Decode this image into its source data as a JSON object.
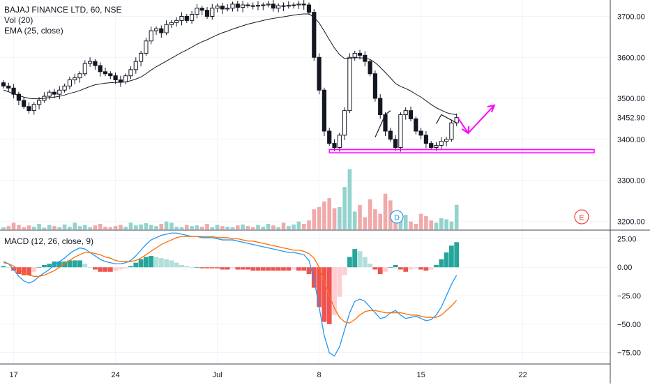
{
  "legend": {
    "symbol": "BAJAJ FINANCE LTD, 60, NSE",
    "volume": "Vol (20)",
    "ema": "EMA (25, close)",
    "macd": "MACD (12, 26, close, 9)"
  },
  "colors": {
    "up": "#26a69a",
    "down": "#ef5350",
    "candle": "#131722",
    "ema": "#131722",
    "drawing": "#ff00ff",
    "macd_line": "#2196f3",
    "signal_line": "#ff6d00",
    "hist_up_strong": "#26a69a",
    "hist_up_weak": "#b2dfdb",
    "hist_down_strong": "#ef5350",
    "hist_down_weak": "#ffcdd2",
    "grid": "#f0f3fa",
    "axis_text": "#131722",
    "last_price_bg": "#ffffff"
  },
  "markers": {
    "dividend": "D",
    "earnings": "E"
  },
  "chart_data": [
    {
      "type": "candlestick",
      "title": "BAJAJ FINANCE LTD, 60, NSE",
      "ylim": [
        3180,
        3740
      ],
      "y_ticks": [
        "3700.00",
        "3600.00",
        "3500.00",
        "3452.90",
        "3400.00",
        "3300.00",
        "3200.00"
      ],
      "y_tick_values": [
        3700,
        3600,
        3500,
        3452.9,
        3400,
        3300,
        3200
      ],
      "last_price": "3452.90",
      "x_ticks": [
        "17",
        "24",
        "Jul",
        "8",
        "15",
        "22"
      ],
      "x_tick_bar_index": [
        2,
        22,
        42,
        62,
        82,
        102
      ],
      "bar_count": 90,
      "closes": [
        3530,
        3525,
        3510,
        3495,
        3480,
        3470,
        3485,
        3495,
        3505,
        3515,
        3510,
        3520,
        3530,
        3545,
        3550,
        3560,
        3585,
        3590,
        3580,
        3565,
        3560,
        3555,
        3545,
        3540,
        3555,
        3570,
        3590,
        3610,
        3640,
        3665,
        3670,
        3660,
        3680,
        3685,
        3690,
        3700,
        3690,
        3705,
        3720,
        3715,
        3700,
        3720,
        3725,
        3718,
        3720,
        3730,
        3722,
        3728,
        3726,
        3725,
        3727,
        3728,
        3730,
        3720,
        3726,
        3725,
        3727,
        3728,
        3730,
        3728,
        3710,
        3600,
        3520,
        3420,
        3390,
        3380,
        3410,
        3470,
        3600,
        3610,
        3605,
        3590,
        3560,
        3500,
        3460,
        3420,
        3400,
        3380,
        3460,
        3470,
        3450,
        3420,
        3410,
        3390,
        3380,
        3385,
        3395,
        3400,
        3440,
        3452.9
      ],
      "ema25": [
        3520,
        3516,
        3511,
        3507,
        3503,
        3500,
        3499,
        3499,
        3500,
        3502,
        3503,
        3505,
        3508,
        3512,
        3515,
        3519,
        3524,
        3529,
        3533,
        3535,
        3537,
        3538,
        3539,
        3539,
        3540,
        3543,
        3547,
        3552,
        3560,
        3569,
        3577,
        3584,
        3591,
        3598,
        3605,
        3612,
        3618,
        3625,
        3632,
        3638,
        3643,
        3649,
        3655,
        3660,
        3664,
        3669,
        3673,
        3677,
        3681,
        3684,
        3687,
        3690,
        3693,
        3695,
        3697,
        3699,
        3701,
        3703,
        3705,
        3706,
        3706,
        3698,
        3684,
        3664,
        3643,
        3623,
        3607,
        3597,
        3598,
        3599,
        3599,
        3598,
        3595,
        3587,
        3576,
        3563,
        3550,
        3536,
        3529,
        3524,
        3518,
        3510,
        3503,
        3494,
        3485,
        3477,
        3471,
        3465,
        3462,
        3460
      ]
    },
    {
      "type": "bar",
      "title": "Vol (20)",
      "bar_count": 90,
      "volume": [
        0.1,
        0.15,
        0.3,
        0.2,
        0.1,
        0.18,
        0.12,
        0.25,
        0.08,
        0.2,
        0.15,
        0.1,
        0.22,
        0.12,
        0.3,
        0.15,
        0.2,
        0.1,
        0.18,
        0.25,
        0.12,
        0.1,
        0.15,
        0.2,
        0.12,
        0.3,
        0.18,
        0.22,
        0.28,
        0.2,
        0.15,
        0.25,
        0.35,
        0.3,
        0.12,
        0.1,
        0.2,
        0.15,
        0.18,
        0.12,
        0.25,
        0.1,
        0.2,
        0.15,
        0.12,
        0.1,
        0.18,
        0.22,
        0.15,
        0.1,
        0.2,
        0.12,
        0.25,
        0.18,
        0.1,
        0.3,
        0.15,
        0.22,
        0.35,
        0.25,
        0.4,
        0.9,
        1.0,
        1.25,
        1.4,
        0.95,
        1.0,
        1.9,
        2.7,
        0.8,
        1.1,
        0.55,
        1.35,
        0.9,
        0.7,
        1.6,
        1.3,
        0.5,
        0.4,
        0.65,
        0.35,
        0.25,
        0.7,
        0.6,
        0.4,
        0.3,
        0.5,
        0.45,
        0.35,
        1.1
      ]
    },
    {
      "type": "line",
      "title": "MACD (12, 26, close, 9)",
      "ylim": [
        -85,
        32
      ],
      "y_ticks": [
        "25.00",
        "0.00",
        "−25.00",
        "−50.00",
        "−75.00"
      ],
      "y_tick_values": [
        25,
        0,
        -25,
        -50,
        -75
      ],
      "series": [
        {
          "name": "MACD",
          "values": [
            5,
            3,
            -2,
            -8,
            -12,
            -14,
            -12,
            -8,
            -5,
            -2,
            2,
            5,
            8,
            12,
            15,
            17,
            16,
            13,
            10,
            7,
            5,
            4,
            3,
            3,
            4,
            6,
            10,
            15,
            20,
            24,
            26,
            28,
            29,
            30,
            30,
            29,
            28,
            27,
            27,
            26,
            26,
            26,
            25,
            24,
            24,
            24,
            23,
            22,
            21,
            20,
            19,
            18,
            17,
            16,
            15,
            14,
            13,
            13,
            12,
            11,
            6,
            -10,
            -35,
            -60,
            -75,
            -78,
            -70,
            -55,
            -40,
            -30,
            -28,
            -30,
            -35,
            -40,
            -45,
            -44,
            -40,
            -38,
            -42,
            -45,
            -44,
            -43,
            -45,
            -47,
            -46,
            -42,
            -35,
            -25,
            -15,
            -7
          ]
        },
        {
          "name": "Signal",
          "values": [
            4,
            3,
            1,
            -2,
            -5,
            -7,
            -8,
            -8,
            -7,
            -5,
            -3,
            0,
            3,
            6,
            9,
            11,
            13,
            13,
            12,
            11,
            9,
            8,
            6,
            5,
            5,
            5,
            6,
            8,
            11,
            14,
            17,
            20,
            22,
            24,
            26,
            27,
            27,
            27,
            27,
            27,
            27,
            27,
            26,
            26,
            26,
            25,
            25,
            24,
            23,
            23,
            22,
            21,
            20,
            19,
            18,
            17,
            16,
            15,
            15,
            14,
            12,
            8,
            0,
            -12,
            -25,
            -36,
            -44,
            -48,
            -49,
            -46,
            -42,
            -39,
            -38,
            -38,
            -39,
            -40,
            -40,
            -40,
            -40,
            -41,
            -42,
            -42,
            -43,
            -44,
            -44,
            -44,
            -42,
            -38,
            -34,
            -29
          ]
        }
      ],
      "histogram_note": "MACD minus Signal"
    }
  ]
}
